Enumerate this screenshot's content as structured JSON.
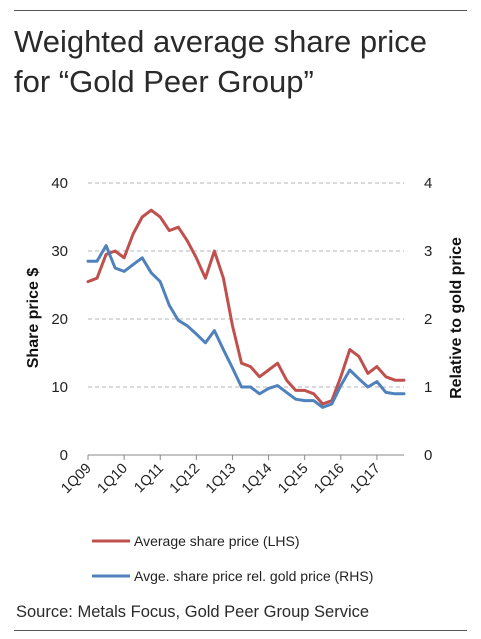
{
  "title": "Weighted average share price for “Gold Peer Group”",
  "source": "Source: Metals Focus, Gold Peer Group Service",
  "colors": {
    "red": "#c0504d",
    "blue": "#4f81bd"
  },
  "chart_data": {
    "type": "line",
    "ylabel": "Share price $",
    "y2label": "Relative to gold price",
    "ylim": [
      0,
      40
    ],
    "y2lim": [
      0,
      4
    ],
    "yticks": [
      "0",
      "10",
      "20",
      "30",
      "40"
    ],
    "y2ticks": [
      "0",
      "1",
      "2",
      "3",
      "4"
    ],
    "grid": "dashed horizontal",
    "legend_position": "bottom",
    "x": [
      "1Q09",
      "2Q09",
      "3Q09",
      "4Q09",
      "1Q10",
      "2Q10",
      "3Q10",
      "4Q10",
      "1Q11",
      "2Q11",
      "3Q11",
      "4Q11",
      "1Q12",
      "2Q12",
      "3Q12",
      "4Q12",
      "1Q13",
      "2Q13",
      "3Q13",
      "4Q13",
      "1Q14",
      "2Q14",
      "3Q14",
      "4Q14",
      "1Q15",
      "2Q15",
      "3Q15",
      "4Q15",
      "1Q16",
      "2Q16",
      "3Q16",
      "4Q16",
      "1Q17",
      "2Q17",
      "3Q17",
      "4Q17"
    ],
    "xtick_labels": [
      "1Q09",
      "1Q10",
      "1Q11",
      "1Q12",
      "1Q13",
      "1Q14",
      "1Q15",
      "1Q16",
      "1Q17"
    ],
    "series": [
      {
        "name": "Average share price (LHS)",
        "axis": "left",
        "color": "#c0504d",
        "values": [
          25.5,
          26,
          29.5,
          30,
          29,
          32.5,
          35,
          36,
          35,
          33,
          33.5,
          31.5,
          29,
          26,
          30,
          26,
          19,
          13.5,
          13,
          11.5,
          12.5,
          13.5,
          11,
          9.5,
          9.5,
          9,
          7.5,
          8,
          11.5,
          15.5,
          14.5,
          12,
          13,
          11.5,
          11,
          11
        ]
      },
      {
        "name": "Avge. share price rel. gold price (RHS)",
        "axis": "right",
        "color": "#4f81bd",
        "values": [
          2.85,
          2.85,
          3.08,
          2.75,
          2.7,
          2.8,
          2.9,
          2.68,
          2.55,
          2.2,
          1.98,
          1.9,
          1.78,
          1.65,
          1.83,
          1.55,
          1.28,
          1.0,
          1.0,
          0.9,
          0.98,
          1.02,
          0.92,
          0.82,
          0.8,
          0.8,
          0.7,
          0.75,
          1.02,
          1.25,
          1.12,
          1.0,
          1.08,
          0.92,
          0.9,
          0.9
        ]
      }
    ]
  }
}
